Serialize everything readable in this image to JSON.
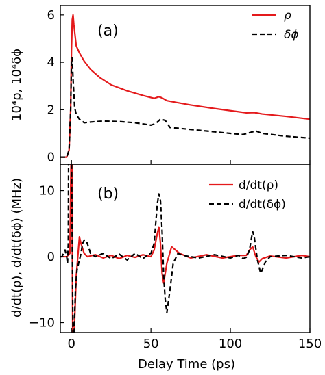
{
  "figure": {
    "xlabel": "Delay Time (ps)",
    "xlim": [
      -7,
      150
    ],
    "x_ticks": [
      0,
      50,
      100,
      150
    ],
    "x_tick_labels": [
      "0",
      "50",
      "100",
      "150"
    ]
  },
  "chart_data": [
    {
      "type": "line",
      "panel_label": "(a)",
      "ylabel": "10⁴ρ, 10⁴δϕ",
      "xlim": [
        -7,
        150
      ],
      "ylim": [
        -0.3,
        6.4
      ],
      "y_ticks": [
        0,
        2,
        4,
        6
      ],
      "y_tick_labels": [
        "0",
        "2",
        "4",
        "6"
      ],
      "legend_position": "top-right",
      "series": [
        {
          "name": "ρ",
          "color": "#e41a1c",
          "dash": "solid",
          "x": [
            -7,
            -3,
            -1.5,
            -0.5,
            0,
            0.5,
            1,
            1.5,
            3,
            5,
            8,
            12,
            18,
            25,
            35,
            45,
            52,
            55,
            57,
            60,
            65,
            75,
            90,
            110,
            115,
            120,
            135,
            150
          ],
          "y": [
            0,
            0,
            0.3,
            2.0,
            4.5,
            5.8,
            6.0,
            5.6,
            4.7,
            4.4,
            4.05,
            3.7,
            3.35,
            3.05,
            2.8,
            2.6,
            2.48,
            2.55,
            2.5,
            2.38,
            2.32,
            2.2,
            2.05,
            1.87,
            1.88,
            1.82,
            1.72,
            1.6
          ]
        },
        {
          "name": "δϕ",
          "color": "#000000",
          "dash": "dashed",
          "x": [
            -7,
            -3,
            -1.5,
            -0.5,
            0,
            0.5,
            1,
            2,
            3,
            5,
            8,
            12,
            20,
            30,
            40,
            50,
            53,
            56,
            59,
            62,
            70,
            85,
            100,
            108,
            113,
            116,
            120,
            135,
            150
          ],
          "y": [
            0,
            0,
            0.3,
            2.0,
            4.0,
            4.2,
            3.3,
            2.1,
            1.8,
            1.6,
            1.45,
            1.48,
            1.52,
            1.5,
            1.45,
            1.35,
            1.42,
            1.6,
            1.55,
            1.25,
            1.2,
            1.1,
            1.0,
            0.95,
            1.05,
            1.1,
            1.0,
            0.88,
            0.8
          ]
        }
      ]
    },
    {
      "type": "line",
      "panel_label": "(b)",
      "ylabel": "d/dt(ρ), d/dt(δϕ) (MHz)",
      "xlim": [
        -7,
        150
      ],
      "ylim": [
        -11.5,
        14
      ],
      "y_ticks": [
        -10,
        0,
        10
      ],
      "y_tick_labels": [
        "−10",
        "0",
        "10"
      ],
      "legend_position": "top-right",
      "series": [
        {
          "name": "d/dt(ρ)",
          "color": "#e41a1c",
          "dash": "solid",
          "x": [
            -7,
            -3,
            -1,
            -0.2,
            0.3,
            0.8,
            1.5,
            3,
            4,
            5,
            6,
            8,
            10,
            15,
            20,
            25,
            30,
            35,
            40,
            45,
            50,
            52,
            54,
            55,
            56,
            57,
            58,
            60,
            63,
            68,
            75,
            85,
            95,
            105,
            110,
            112,
            114,
            116,
            118,
            120,
            125,
            135,
            145,
            150
          ],
          "y": [
            0,
            0,
            0.5,
            16,
            16,
            -13,
            -13,
            -3,
            0,
            3,
            2,
            0.5,
            0,
            0.3,
            -0.2,
            0.2,
            -0.3,
            0.2,
            -0.1,
            0.3,
            0,
            1,
            3.5,
            4.5,
            2,
            -2.5,
            -4,
            -1,
            1.5,
            0.5,
            -0.2,
            0.3,
            -0.2,
            0.2,
            0.2,
            1,
            1.5,
            0,
            -0.8,
            -0.3,
            0.1,
            -0.2,
            0.2,
            0
          ]
        },
        {
          "name": "d/dt(δϕ)",
          "color": "#000000",
          "dash": "dashed",
          "x": [
            -7,
            -6,
            -5,
            -4,
            -3,
            -2.5,
            -2,
            -1.8,
            -1.5,
            -1,
            0,
            1,
            1.5,
            2,
            2.5,
            3.5,
            5,
            6,
            7,
            8,
            9,
            10,
            12,
            15,
            20,
            25,
            30,
            35,
            40,
            45,
            48,
            50,
            52,
            53,
            54,
            55,
            56,
            57,
            58,
            59,
            60,
            62,
            64,
            67,
            70,
            80,
            90,
            100,
            105,
            108,
            110,
            112,
            113,
            114,
            115,
            116,
            117,
            118,
            119,
            120,
            122,
            125,
            135,
            145,
            150
          ],
          "y": [
            0,
            0,
            0.5,
            1,
            0,
            -1,
            2,
            16,
            16,
            16,
            16,
            -13,
            -13,
            -9,
            -5,
            -2,
            -0.5,
            0.5,
            2,
            2.5,
            2.5,
            2,
            0.5,
            0,
            0.5,
            -0.3,
            0.4,
            -0.5,
            0.5,
            -0.3,
            0.3,
            0.5,
            2,
            5,
            8,
            9.5,
            8.5,
            4,
            -3,
            -6.5,
            -8.5,
            -5,
            -1,
            0.5,
            0.2,
            -0.2,
            0.3,
            -0.2,
            0.2,
            -0.3,
            -0.1,
            1,
            2.5,
            3.8,
            3,
            1.2,
            -0.5,
            -1.5,
            -2.5,
            -2,
            -0.8,
            0,
            0.2,
            -0.2,
            0
          ]
        }
      ]
    }
  ]
}
